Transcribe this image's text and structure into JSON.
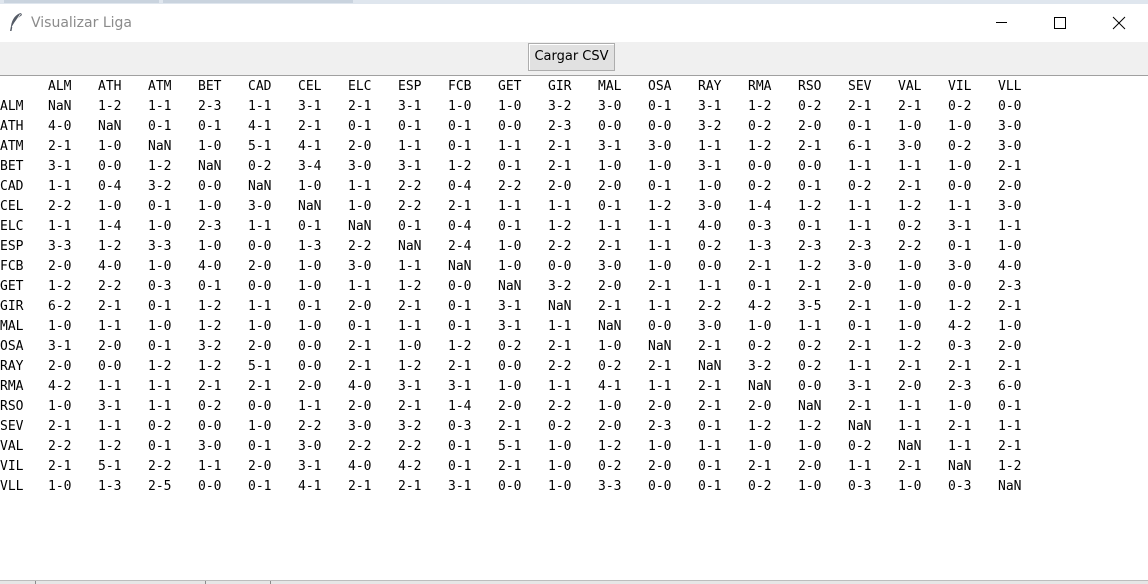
{
  "window": {
    "title": "Visualizar Liga",
    "controls": {
      "minimize": "minimize-icon",
      "maximize": "maximize-icon",
      "close": "close-icon"
    }
  },
  "toolbar": {
    "load_csv_label": "Cargar CSV"
  },
  "table": {
    "columns": [
      "ALM",
      "ATH",
      "ATM",
      "BET",
      "CAD",
      "CEL",
      "ELC",
      "ESP",
      "FCB",
      "GET",
      "GIR",
      "MAL",
      "OSA",
      "RAY",
      "RMA",
      "RSO",
      "SEV",
      "VAL",
      "VIL",
      "VLL"
    ],
    "rows": [
      {
        "team": "ALM",
        "results": [
          "NaN",
          "1-2",
          "1-1",
          "2-3",
          "1-1",
          "3-1",
          "2-1",
          "3-1",
          "1-0",
          "1-0",
          "3-2",
          "3-0",
          "0-1",
          "3-1",
          "1-2",
          "0-2",
          "2-1",
          "2-1",
          "0-2",
          "0-0"
        ]
      },
      {
        "team": "ATH",
        "results": [
          "4-0",
          "NaN",
          "0-1",
          "0-1",
          "4-1",
          "2-1",
          "0-1",
          "0-1",
          "0-1",
          "0-0",
          "2-3",
          "0-0",
          "0-0",
          "3-2",
          "0-2",
          "2-0",
          "0-1",
          "1-0",
          "1-0",
          "3-0"
        ]
      },
      {
        "team": "ATM",
        "results": [
          "2-1",
          "1-0",
          "NaN",
          "1-0",
          "5-1",
          "4-1",
          "2-0",
          "1-1",
          "0-1",
          "1-1",
          "2-1",
          "3-1",
          "3-0",
          "1-1",
          "1-2",
          "2-1",
          "6-1",
          "3-0",
          "0-2",
          "3-0"
        ]
      },
      {
        "team": "BET",
        "results": [
          "3-1",
          "0-0",
          "1-2",
          "NaN",
          "0-2",
          "3-4",
          "3-0",
          "3-1",
          "1-2",
          "0-1",
          "2-1",
          "1-0",
          "1-0",
          "3-1",
          "0-0",
          "0-0",
          "1-1",
          "1-1",
          "1-0",
          "2-1"
        ]
      },
      {
        "team": "CAD",
        "results": [
          "1-1",
          "0-4",
          "3-2",
          "0-0",
          "NaN",
          "1-0",
          "1-1",
          "2-2",
          "0-4",
          "2-2",
          "2-0",
          "2-0",
          "0-1",
          "1-0",
          "0-2",
          "0-1",
          "0-2",
          "2-1",
          "0-0",
          "2-0"
        ]
      },
      {
        "team": "CEL",
        "results": [
          "2-2",
          "1-0",
          "0-1",
          "1-0",
          "3-0",
          "NaN",
          "1-0",
          "2-2",
          "2-1",
          "1-1",
          "1-1",
          "0-1",
          "1-2",
          "3-0",
          "1-4",
          "1-2",
          "1-1",
          "1-2",
          "1-1",
          "3-0"
        ]
      },
      {
        "team": "ELC",
        "results": [
          "1-1",
          "1-4",
          "1-0",
          "2-3",
          "1-1",
          "0-1",
          "NaN",
          "0-1",
          "0-4",
          "0-1",
          "1-2",
          "1-1",
          "1-1",
          "4-0",
          "0-3",
          "0-1",
          "1-1",
          "0-2",
          "3-1",
          "1-1"
        ]
      },
      {
        "team": "ESP",
        "results": [
          "3-3",
          "1-2",
          "3-3",
          "1-0",
          "0-0",
          "1-3",
          "2-2",
          "NaN",
          "2-4",
          "1-0",
          "2-2",
          "2-1",
          "1-1",
          "0-2",
          "1-3",
          "2-3",
          "2-3",
          "2-2",
          "0-1",
          "1-0"
        ]
      },
      {
        "team": "FCB",
        "results": [
          "2-0",
          "4-0",
          "1-0",
          "4-0",
          "2-0",
          "1-0",
          "3-0",
          "1-1",
          "NaN",
          "1-0",
          "0-0",
          "3-0",
          "1-0",
          "0-0",
          "2-1",
          "1-2",
          "3-0",
          "1-0",
          "3-0",
          "4-0"
        ]
      },
      {
        "team": "GET",
        "results": [
          "1-2",
          "2-2",
          "0-3",
          "0-1",
          "0-0",
          "1-0",
          "1-1",
          "1-2",
          "0-0",
          "NaN",
          "3-2",
          "2-0",
          "2-1",
          "1-1",
          "0-1",
          "2-1",
          "2-0",
          "1-0",
          "0-0",
          "2-3"
        ]
      },
      {
        "team": "GIR",
        "results": [
          "6-2",
          "2-1",
          "0-1",
          "1-2",
          "1-1",
          "0-1",
          "2-0",
          "2-1",
          "0-1",
          "3-1",
          "NaN",
          "2-1",
          "1-1",
          "2-2",
          "4-2",
          "3-5",
          "2-1",
          "1-0",
          "1-2",
          "2-1"
        ]
      },
      {
        "team": "MAL",
        "results": [
          "1-0",
          "1-1",
          "1-0",
          "1-2",
          "1-0",
          "1-0",
          "0-1",
          "1-1",
          "0-1",
          "3-1",
          "1-1",
          "NaN",
          "0-0",
          "3-0",
          "1-0",
          "1-1",
          "0-1",
          "1-0",
          "4-2",
          "1-0"
        ]
      },
      {
        "team": "OSA",
        "results": [
          "3-1",
          "2-0",
          "0-1",
          "3-2",
          "2-0",
          "0-0",
          "2-1",
          "1-0",
          "1-2",
          "0-2",
          "2-1",
          "1-0",
          "NaN",
          "2-1",
          "0-2",
          "0-2",
          "2-1",
          "1-2",
          "0-3",
          "2-0"
        ]
      },
      {
        "team": "RAY",
        "results": [
          "2-0",
          "0-0",
          "1-2",
          "1-2",
          "5-1",
          "0-0",
          "2-1",
          "1-2",
          "2-1",
          "0-0",
          "2-2",
          "0-2",
          "2-1",
          "NaN",
          "3-2",
          "0-2",
          "1-1",
          "2-1",
          "2-1",
          "2-1"
        ]
      },
      {
        "team": "RMA",
        "results": [
          "4-2",
          "1-1",
          "1-1",
          "2-1",
          "2-1",
          "2-0",
          "4-0",
          "3-1",
          "3-1",
          "1-0",
          "1-1",
          "4-1",
          "1-1",
          "2-1",
          "NaN",
          "0-0",
          "3-1",
          "2-0",
          "2-3",
          "6-0"
        ]
      },
      {
        "team": "RSO",
        "results": [
          "1-0",
          "3-1",
          "1-1",
          "0-2",
          "0-0",
          "1-1",
          "2-0",
          "2-1",
          "1-4",
          "2-0",
          "2-2",
          "1-0",
          "2-0",
          "2-1",
          "2-0",
          "NaN",
          "2-1",
          "1-1",
          "1-0",
          "0-1"
        ]
      },
      {
        "team": "SEV",
        "results": [
          "2-1",
          "1-1",
          "0-2",
          "0-0",
          "1-0",
          "2-2",
          "3-0",
          "3-2",
          "0-3",
          "2-1",
          "0-2",
          "2-0",
          "2-3",
          "0-1",
          "1-2",
          "1-2",
          "NaN",
          "1-1",
          "2-1",
          "1-1"
        ]
      },
      {
        "team": "VAL",
        "results": [
          "2-2",
          "1-2",
          "0-1",
          "3-0",
          "0-1",
          "3-0",
          "2-2",
          "2-2",
          "0-1",
          "5-1",
          "1-0",
          "1-2",
          "1-0",
          "1-1",
          "1-0",
          "1-0",
          "0-2",
          "NaN",
          "1-1",
          "2-1"
        ]
      },
      {
        "team": "VIL",
        "results": [
          "2-1",
          "5-1",
          "2-2",
          "1-1",
          "2-0",
          "3-1",
          "4-0",
          "4-2",
          "0-1",
          "2-1",
          "1-0",
          "0-2",
          "2-0",
          "0-1",
          "2-1",
          "2-0",
          "1-1",
          "2-1",
          "NaN",
          "1-2"
        ]
      },
      {
        "team": "VLL",
        "results": [
          "1-0",
          "1-3",
          "2-5",
          "0-0",
          "0-1",
          "4-1",
          "2-1",
          "2-1",
          "3-1",
          "0-0",
          "1-0",
          "3-3",
          "0-0",
          "0-1",
          "0-2",
          "1-0",
          "0-3",
          "1-0",
          "0-3",
          "NaN"
        ]
      }
    ]
  }
}
